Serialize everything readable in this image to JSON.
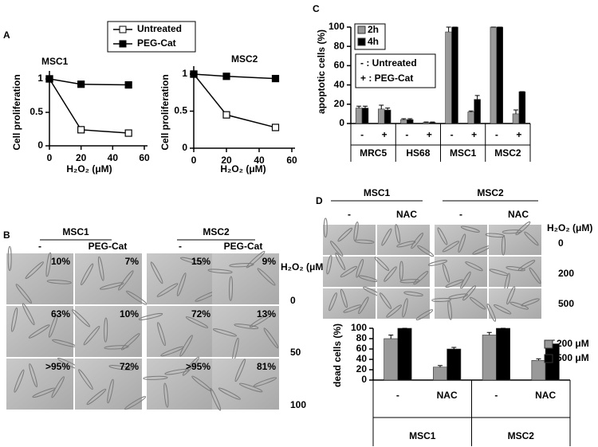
{
  "panel_labels": [
    "A",
    "B",
    "C",
    "D"
  ],
  "chart_data": [
    {
      "type": "line",
      "title": "MSC1",
      "xlabel": "H₂O₂ (μM)",
      "ylabel": "Cell proliferation",
      "x": [
        0,
        20,
        50
      ],
      "series": [
        {
          "name": "Untreated",
          "color": "#000000",
          "fill": "#ffffff",
          "values": [
            1,
            0.24,
            0.19
          ]
        },
        {
          "name": "PEG-Cat",
          "color": "#000000",
          "fill": "#000000",
          "values": [
            1,
            0.92,
            0.91
          ]
        }
      ],
      "xlim": [
        0,
        60
      ],
      "ylim": [
        0,
        1
      ],
      "xticks": [
        0,
        20,
        40,
        60
      ],
      "yticks": [
        0,
        0.5,
        1
      ]
    },
    {
      "type": "line",
      "title": "MSC2",
      "xlabel": "H₂O₂ (μM)",
      "ylabel": "Cell proliferation",
      "x": [
        0,
        20,
        50
      ],
      "series": [
        {
          "color": "#000000",
          "fill": "#ffffff",
          "values": [
            1,
            0.45,
            0.28
          ]
        },
        {
          "color": "#000000",
          "fill": "#000000",
          "values": [
            1,
            0.97,
            0.94
          ]
        }
      ],
      "xlim": [
        0,
        60
      ],
      "ylim": [
        0,
        1
      ],
      "xticks": [
        0,
        20,
        40,
        60
      ],
      "yticks": [
        0,
        0.5,
        1
      ]
    },
    {
      "type": "bar",
      "ylabel": "apoptotic cells (%)",
      "categories": [
        "-",
        "+",
        "-",
        "+",
        "-",
        "+",
        "-",
        "+"
      ],
      "groups": [
        "MRC5",
        "HS68",
        "MSC1",
        "MSC2"
      ],
      "series": [
        {
          "name": "2h",
          "color": "#999999",
          "values": [
            16,
            15,
            4,
            1,
            95,
            12,
            100,
            10
          ],
          "errors": [
            2,
            4,
            1,
            0.5,
            5,
            1,
            0,
            4
          ]
        },
        {
          "name": "4h",
          "color": "#000000",
          "values": [
            16,
            14,
            4,
            1,
            100,
            25,
            100,
            33
          ],
          "errors": [
            2,
            2,
            1,
            0.5,
            0,
            4,
            0,
            0
          ]
        }
      ],
      "ylim": [
        0,
        100
      ],
      "yticks": [
        0,
        20,
        40,
        60,
        80,
        100
      ],
      "annotations": [
        "- : Untreated",
        "+ : PEG-Cat"
      ]
    },
    {
      "type": "bar",
      "ylabel": "dead cells (%)",
      "categories": [
        "-",
        "NAC",
        "-",
        "NAC"
      ],
      "groups": [
        "MSC1",
        "MSC2"
      ],
      "series": [
        {
          "name": "200 μM",
          "color": "#999999",
          "values": [
            80,
            25,
            87,
            38
          ],
          "errors": [
            7,
            3,
            5,
            3
          ]
        },
        {
          "name": "500 μM",
          "color": "#000000",
          "values": [
            100,
            60,
            100,
            70
          ],
          "errors": [
            0,
            3,
            0,
            7
          ]
        }
      ],
      "ylim": [
        0,
        100
      ],
      "yticks": [
        0,
        20,
        40,
        60,
        80,
        100
      ]
    }
  ],
  "micrographs": [
    {
      "groups": [
        "MSC1",
        "MSC2"
      ],
      "columns": [
        "-",
        "PEG-Cat",
        "-",
        "PEG-Cat"
      ],
      "row_title": "H₂O₂ (μM)",
      "rows": [
        "0",
        "50",
        "100"
      ],
      "percentages": [
        [
          "10%",
          "7%",
          "15%",
          "9%"
        ],
        [
          "63%",
          "10%",
          "72%",
          "13%"
        ],
        [
          ">95%",
          "72%",
          ">95%",
          "81%"
        ]
      ]
    },
    {
      "groups": [
        "MSC1",
        "MSC2"
      ],
      "columns": [
        "-",
        "NAC",
        "-",
        "NAC"
      ],
      "row_title": "H₂O₂ (μM)",
      "rows": [
        "0",
        "200",
        "500"
      ]
    }
  ]
}
